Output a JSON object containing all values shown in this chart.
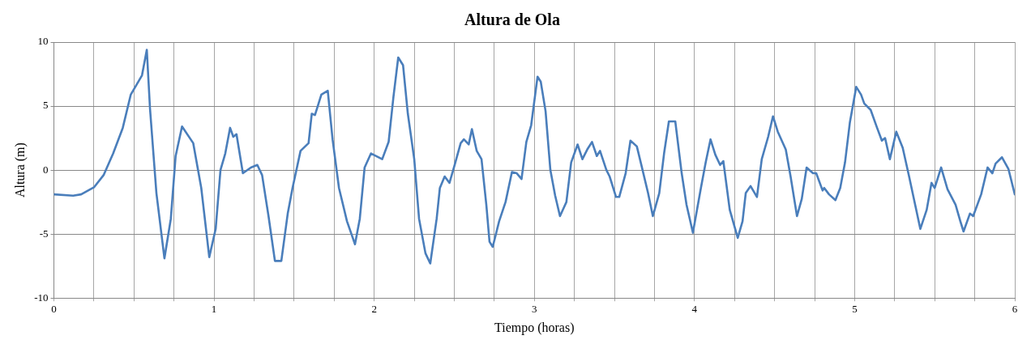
{
  "chart_data": {
    "type": "line",
    "title": "Altura de Ola",
    "xlabel": "Tiempo (horas)",
    "ylabel": "Altura (m)",
    "xlim": [
      0,
      6
    ],
    "ylim": [
      -10,
      10
    ],
    "xticks": [
      0,
      {
        "value": 0.25,
        "label": null
      },
      {
        "value": 0.5,
        "label": null
      },
      {
        "value": 0.75,
        "label": null
      },
      1,
      {
        "value": 1.25,
        "label": null
      },
      {
        "value": 1.5,
        "label": null
      },
      {
        "value": 1.75,
        "label": null
      },
      2,
      {
        "value": 2.25,
        "label": null
      },
      {
        "value": 2.5,
        "label": null
      },
      {
        "value": 2.75,
        "label": null
      },
      3,
      {
        "value": 3.25,
        "label": null
      },
      {
        "value": 3.5,
        "label": null
      },
      {
        "value": 3.75,
        "label": null
      },
      4,
      {
        "value": 4.25,
        "label": null
      },
      {
        "value": 4.5,
        "label": null
      },
      {
        "value": 4.75,
        "label": null
      },
      5,
      {
        "value": 5.25,
        "label": null
      },
      {
        "value": 5.5,
        "label": null
      },
      {
        "value": 5.75,
        "label": null
      },
      6
    ],
    "yticks": [
      -10,
      -5,
      0,
      5,
      10
    ],
    "grid": true,
    "legend": false,
    "marker": "none",
    "line_style": "solid",
    "series": [
      {
        "color": "#4a7ebb",
        "x": [
          0,
          0.12,
          0.17,
          0.25,
          0.31,
          0.37,
          0.43,
          0.48,
          0.55,
          0.58,
          0.6,
          0.64,
          0.69,
          0.73,
          0.76,
          0.8,
          0.87,
          0.92,
          0.97,
          1.01,
          1.04,
          1.07,
          1.1,
          1.12,
          1.14,
          1.18,
          1.23,
          1.27,
          1.3,
          1.34,
          1.38,
          1.42,
          1.46,
          1.49,
          1.54,
          1.59,
          1.61,
          1.63,
          1.67,
          1.71,
          1.74,
          1.78,
          1.83,
          1.88,
          1.91,
          1.94,
          1.98,
          2.05,
          2.09,
          2.12,
          2.15,
          2.18,
          2.21,
          2.25,
          2.28,
          2.32,
          2.35,
          2.39,
          2.41,
          2.44,
          2.47,
          2.5,
          2.54,
          2.56,
          2.59,
          2.61,
          2.64,
          2.67,
          2.7,
          2.72,
          2.74,
          2.78,
          2.82,
          2.86,
          2.89,
          2.92,
          2.95,
          2.98,
          3.02,
          3.04,
          3.07,
          3.1,
          3.13,
          3.16,
          3.2,
          3.23,
          3.27,
          3.3,
          3.33,
          3.36,
          3.39,
          3.41,
          3.45,
          3.47,
          3.51,
          3.53,
          3.57,
          3.6,
          3.64,
          3.67,
          3.71,
          3.74,
          3.78,
          3.81,
          3.84,
          3.88,
          3.92,
          3.95,
          3.99,
          4.04,
          4.07,
          4.1,
          4.13,
          4.16,
          4.18,
          4.22,
          4.27,
          4.3,
          4.32,
          4.35,
          4.39,
          4.42,
          4.46,
          4.49,
          4.52,
          4.57,
          4.6,
          4.64,
          4.67,
          4.7,
          4.74,
          4.76,
          4.8,
          4.81,
          4.84,
          4.88,
          4.91,
          4.94,
          4.97,
          5.01,
          5.04,
          5.06,
          5.1,
          5.14,
          5.17,
          5.19,
          5.22,
          5.26,
          5.3,
          5.34,
          5.37,
          5.41,
          5.45,
          5.48,
          5.5,
          5.54,
          5.58,
          5.63,
          5.66,
          5.68,
          5.72,
          5.74,
          5.79,
          5.83,
          5.86,
          5.88,
          5.92,
          5.96,
          6
        ],
        "values": [
          -1.9,
          -2,
          -1.9,
          -1.35,
          -0.4,
          1.3,
          3.3,
          5.9,
          7.4,
          9.4,
          4.8,
          -1.8,
          -6.9,
          -3.8,
          1.1,
          3.4,
          2.1,
          -1.4,
          -6.8,
          -4.6,
          0,
          1.3,
          3.3,
          2.6,
          2.8,
          -0.25,
          0.2,
          0.4,
          -0.4,
          -3.6,
          -7.1,
          -7.1,
          -3.4,
          -1.4,
          1.5,
          2.1,
          4.4,
          4.3,
          5.9,
          6.2,
          2.4,
          -1.4,
          -4,
          -5.8,
          -3.8,
          0.2,
          1.3,
          0.85,
          2.2,
          5.7,
          8.8,
          8.2,
          4.4,
          0.85,
          -3.8,
          -6.5,
          -7.3,
          -3.8,
          -1.4,
          -0.5,
          -1,
          0.3,
          2.1,
          2.4,
          2,
          3.2,
          1.5,
          0.85,
          -2.7,
          -5.6,
          -6,
          -4,
          -2.5,
          -0.15,
          -0.25,
          -0.7,
          2.2,
          3.5,
          7.3,
          6.9,
          4.6,
          0,
          -2,
          -3.6,
          -2.5,
          0.6,
          2,
          0.85,
          1.6,
          2.2,
          1.1,
          1.5,
          0,
          -0.5,
          -2.1,
          -2.1,
          -0.25,
          2.3,
          1.85,
          0.3,
          -1.8,
          -3.6,
          -1.8,
          1.3,
          3.8,
          3.8,
          -0.25,
          -2.7,
          -4.9,
          -1.4,
          0.6,
          2.4,
          1.2,
          0.4,
          0.7,
          -3.1,
          -5.3,
          -4,
          -1.8,
          -1.25,
          -2.1,
          0.85,
          2.6,
          4.2,
          3,
          1.6,
          -0.5,
          -3.6,
          -2.25,
          0.2,
          -0.25,
          -0.25,
          -1.6,
          -1.4,
          -1.9,
          -2.35,
          -1.4,
          0.6,
          3.7,
          6.5,
          5.9,
          5.2,
          4.7,
          3.3,
          2.3,
          2.5,
          0.85,
          3,
          1.75,
          -0.5,
          -2.25,
          -4.6,
          -3.1,
          -1,
          -1.4,
          0.2,
          -1.5,
          -2.7,
          -4,
          -4.8,
          -3.4,
          -3.6,
          -1.9,
          0.2,
          -0.25,
          0.5,
          1,
          0.1,
          -1.9
        ]
      }
    ]
  }
}
